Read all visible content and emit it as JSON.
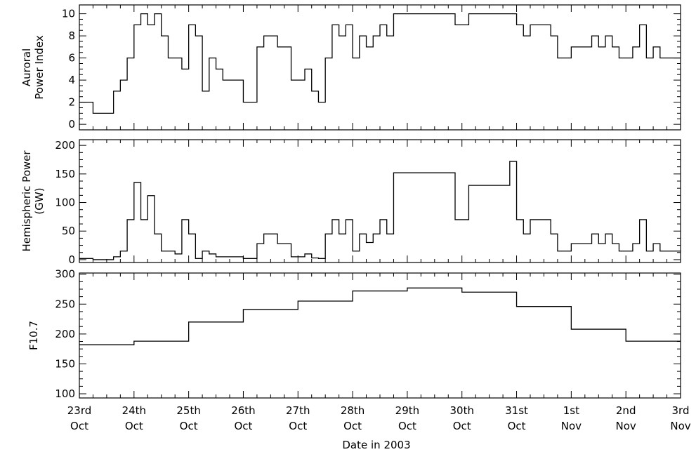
{
  "chart_data": [
    {
      "type": "line",
      "step": true,
      "ylabel_lines": [
        "Auroral",
        "Power Index"
      ],
      "ylim": [
        -0.5,
        10.8
      ],
      "yticks": [
        0,
        2,
        4,
        6,
        8,
        10
      ],
      "series": [
        {
          "values": [
            {
              "x": 0,
              "y": 2
            },
            {
              "x": 0.25,
              "y": 1
            },
            {
              "x": 0.5,
              "y": 1
            },
            {
              "x": 0.625,
              "y": 3
            },
            {
              "x": 0.75,
              "y": 4
            },
            {
              "x": 0.875,
              "y": 6
            },
            {
              "x": 1.0,
              "y": 9
            },
            {
              "x": 1.125,
              "y": 10
            },
            {
              "x": 1.25,
              "y": 9
            },
            {
              "x": 1.375,
              "y": 10
            },
            {
              "x": 1.5,
              "y": 8
            },
            {
              "x": 1.625,
              "y": 6
            },
            {
              "x": 1.75,
              "y": 6
            },
            {
              "x": 1.875,
              "y": 5
            },
            {
              "x": 2.0,
              "y": 9
            },
            {
              "x": 2.125,
              "y": 8
            },
            {
              "x": 2.25,
              "y": 3
            },
            {
              "x": 2.375,
              "y": 6
            },
            {
              "x": 2.5,
              "y": 5
            },
            {
              "x": 2.625,
              "y": 4
            },
            {
              "x": 3.0,
              "y": 2
            },
            {
              "x": 3.25,
              "y": 7
            },
            {
              "x": 3.375,
              "y": 8
            },
            {
              "x": 3.625,
              "y": 7
            },
            {
              "x": 3.875,
              "y": 4
            },
            {
              "x": 4.125,
              "y": 5
            },
            {
              "x": 4.25,
              "y": 3
            },
            {
              "x": 4.375,
              "y": 2
            },
            {
              "x": 4.5,
              "y": 6
            },
            {
              "x": 4.625,
              "y": 9
            },
            {
              "x": 4.75,
              "y": 8
            },
            {
              "x": 4.875,
              "y": 9
            },
            {
              "x": 5.0,
              "y": 6
            },
            {
              "x": 5.125,
              "y": 8
            },
            {
              "x": 5.25,
              "y": 7
            },
            {
              "x": 5.375,
              "y": 8
            },
            {
              "x": 5.5,
              "y": 9
            },
            {
              "x": 5.625,
              "y": 8
            },
            {
              "x": 5.75,
              "y": 10
            },
            {
              "x": 6.875,
              "y": 9
            },
            {
              "x": 7.125,
              "y": 10
            },
            {
              "x": 8.0,
              "y": 9
            },
            {
              "x": 8.125,
              "y": 8
            },
            {
              "x": 8.25,
              "y": 9
            },
            {
              "x": 8.625,
              "y": 8
            },
            {
              "x": 8.75,
              "y": 6
            },
            {
              "x": 9.0,
              "y": 7
            },
            {
              "x": 9.375,
              "y": 8
            },
            {
              "x": 9.5,
              "y": 7
            },
            {
              "x": 9.625,
              "y": 8
            },
            {
              "x": 9.75,
              "y": 7
            },
            {
              "x": 9.875,
              "y": 6
            },
            {
              "x": 10.125,
              "y": 7
            },
            {
              "x": 10.25,
              "y": 9
            },
            {
              "x": 10.375,
              "y": 6
            },
            {
              "x": 10.5,
              "y": 7
            },
            {
              "x": 10.625,
              "y": 6
            },
            {
              "x": 11.0,
              "y": 6
            }
          ]
        }
      ]
    },
    {
      "type": "line",
      "step": true,
      "ylabel_lines": [
        "Hemispheric Power",
        "(GW)"
      ],
      "ylim": [
        -5,
        210
      ],
      "yticks": [
        0,
        50,
        100,
        150,
        200
      ],
      "series": [
        {
          "values": [
            {
              "x": 0,
              "y": 2
            },
            {
              "x": 0.25,
              "y": 0
            },
            {
              "x": 0.625,
              "y": 5
            },
            {
              "x": 0.75,
              "y": 15
            },
            {
              "x": 0.875,
              "y": 70
            },
            {
              "x": 1.0,
              "y": 135
            },
            {
              "x": 1.125,
              "y": 70
            },
            {
              "x": 1.25,
              "y": 112
            },
            {
              "x": 1.375,
              "y": 45
            },
            {
              "x": 1.5,
              "y": 15
            },
            {
              "x": 1.75,
              "y": 10
            },
            {
              "x": 1.875,
              "y": 70
            },
            {
              "x": 2.0,
              "y": 45
            },
            {
              "x": 2.125,
              "y": 2
            },
            {
              "x": 2.25,
              "y": 15
            },
            {
              "x": 2.375,
              "y": 10
            },
            {
              "x": 2.5,
              "y": 5
            },
            {
              "x": 3.0,
              "y": 2
            },
            {
              "x": 3.25,
              "y": 28
            },
            {
              "x": 3.375,
              "y": 45
            },
            {
              "x": 3.625,
              "y": 28
            },
            {
              "x": 3.875,
              "y": 5
            },
            {
              "x": 4.125,
              "y": 10
            },
            {
              "x": 4.25,
              "y": 3
            },
            {
              "x": 4.375,
              "y": 2
            },
            {
              "x": 4.5,
              "y": 45
            },
            {
              "x": 4.625,
              "y": 70
            },
            {
              "x": 4.75,
              "y": 45
            },
            {
              "x": 4.875,
              "y": 70
            },
            {
              "x": 5.0,
              "y": 15
            },
            {
              "x": 5.125,
              "y": 45
            },
            {
              "x": 5.25,
              "y": 30
            },
            {
              "x": 5.375,
              "y": 45
            },
            {
              "x": 5.5,
              "y": 70
            },
            {
              "x": 5.625,
              "y": 45
            },
            {
              "x": 5.75,
              "y": 152
            },
            {
              "x": 6.875,
              "y": 70
            },
            {
              "x": 7.125,
              "y": 130
            },
            {
              "x": 7.875,
              "y": 172
            },
            {
              "x": 8.0,
              "y": 70
            },
            {
              "x": 8.125,
              "y": 45
            },
            {
              "x": 8.25,
              "y": 70
            },
            {
              "x": 8.625,
              "y": 45
            },
            {
              "x": 8.75,
              "y": 15
            },
            {
              "x": 9.0,
              "y": 28
            },
            {
              "x": 9.375,
              "y": 45
            },
            {
              "x": 9.5,
              "y": 28
            },
            {
              "x": 9.625,
              "y": 45
            },
            {
              "x": 9.75,
              "y": 28
            },
            {
              "x": 9.875,
              "y": 15
            },
            {
              "x": 10.125,
              "y": 28
            },
            {
              "x": 10.25,
              "y": 70
            },
            {
              "x": 10.375,
              "y": 15
            },
            {
              "x": 10.5,
              "y": 28
            },
            {
              "x": 10.625,
              "y": 15
            },
            {
              "x": 11.0,
              "y": 15
            }
          ]
        }
      ]
    },
    {
      "type": "line",
      "step": true,
      "ylabel_lines": [
        "F10.7"
      ],
      "ylim": [
        93,
        302
      ],
      "yticks": [
        100,
        150,
        200,
        250,
        300
      ],
      "series": [
        {
          "values": [
            {
              "x": 0,
              "y": 182
            },
            {
              "x": 1.0,
              "y": 188
            },
            {
              "x": 2.0,
              "y": 220
            },
            {
              "x": 3.0,
              "y": 241
            },
            {
              "x": 4.0,
              "y": 255
            },
            {
              "x": 5.0,
              "y": 272
            },
            {
              "x": 6.0,
              "y": 277
            },
            {
              "x": 7.0,
              "y": 270
            },
            {
              "x": 8.0,
              "y": 246
            },
            {
              "x": 9.0,
              "y": 208
            },
            {
              "x": 10.0,
              "y": 188
            },
            {
              "x": 11.0,
              "y": 188
            }
          ]
        }
      ]
    }
  ],
  "xaxis": {
    "xlim": [
      0,
      11
    ],
    "xlabel": "Date in 2003",
    "ticks": [
      {
        "x": 0,
        "line1": "23rd",
        "line2": "Oct"
      },
      {
        "x": 1,
        "line1": "24th",
        "line2": "Oct"
      },
      {
        "x": 2,
        "line1": "25th",
        "line2": "Oct"
      },
      {
        "x": 3,
        "line1": "26th",
        "line2": "Oct"
      },
      {
        "x": 4,
        "line1": "27th",
        "line2": "Oct"
      },
      {
        "x": 5,
        "line1": "28th",
        "line2": "Oct"
      },
      {
        "x": 6,
        "line1": "29th",
        "line2": "Oct"
      },
      {
        "x": 7,
        "line1": "30th",
        "line2": "Oct"
      },
      {
        "x": 8,
        "line1": "31st",
        "line2": "Oct"
      },
      {
        "x": 9,
        "line1": "1st",
        "line2": "Nov"
      },
      {
        "x": 10,
        "line1": "2nd",
        "line2": "Nov"
      },
      {
        "x": 11,
        "line1": "3rd",
        "line2": "Nov"
      }
    ]
  }
}
